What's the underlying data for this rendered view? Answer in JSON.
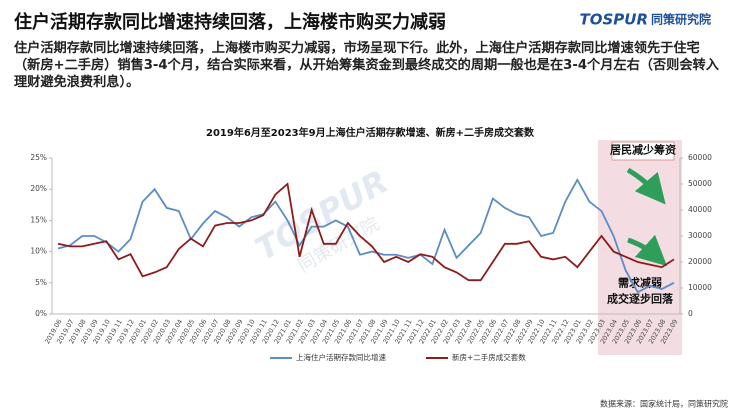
{
  "header": {
    "title": "住户活期存款同比增速持续回落，上海楼市购买力减弱"
  },
  "logo": {
    "brand": "TOSPUR",
    "name": "同策研究院"
  },
  "description": "住户活期存款同比增速持续回落，上海楼市购买力减弱，市场呈现下行。此外，上海住户活期存款同比增速领先于住宅（新房+二手房）销售3-4个月，结合实际来看，从开始筹集资金到最终成交的周期一般也是在3-4个月左右（否则会转入理财避免浪费利息）。",
  "chart_data": {
    "type": "line",
    "title": "2019年6月至2023年9月上海住户活期存款增速、新房+二手房成交套数",
    "categories": [
      "2019.06",
      "2019.07",
      "2019.08",
      "2019.09",
      "2019.10",
      "2019.11",
      "2019.12",
      "2020.01",
      "2020.02",
      "2020.03",
      "2020.04",
      "2020.05",
      "2020.06",
      "2020.07",
      "2020.08",
      "2020.09",
      "2020.10",
      "2020.11",
      "2020.12",
      "2021.01",
      "2021.02",
      "2021.03",
      "2021.04",
      "2021.05",
      "2021.06",
      "2021.07",
      "2021.08",
      "2021.09",
      "2021.10",
      "2021.11",
      "2021.12",
      "2022.01",
      "2022.02",
      "2022.03",
      "2022.04",
      "2022.05",
      "2022.06",
      "2022.07",
      "2022.08",
      "2022.09",
      "2022.10",
      "2022.11",
      "2022.12",
      "2023.01",
      "2023.02",
      "2023.03",
      "2023.04",
      "2023.05",
      "2023.06",
      "2023.07",
      "2023.08",
      "2023.09"
    ],
    "series": [
      {
        "name": "上海住户活期存款同比增速",
        "color": "#5b8cc4",
        "values": [
          10.5,
          11,
          12.5,
          12.5,
          11.5,
          10,
          12,
          18,
          20,
          17,
          16.5,
          12,
          14.5,
          16.5,
          15.5,
          14,
          15.5,
          16,
          18,
          15,
          11,
          14,
          14,
          15,
          14,
          9.5,
          10,
          9.5,
          9.5,
          9,
          9.5,
          8,
          13.5,
          9,
          11,
          13,
          18.5,
          17,
          16,
          15.5,
          12.5,
          13,
          18,
          21.5,
          18,
          16.5,
          12.5,
          7,
          3.5,
          4.5,
          4,
          5
        ]
      },
      {
        "name": "新房+二手房成交套数",
        "color": "#8e1b1b",
        "axis": "y2",
        "values": [
          27000,
          26000,
          26000,
          27000,
          28000,
          21000,
          23000,
          14500,
          16000,
          18000,
          25000,
          29000,
          26000,
          34000,
          35000,
          35000,
          36000,
          38000,
          46000,
          50000,
          22000,
          40000,
          27000,
          27000,
          35000,
          30000,
          26000,
          20000,
          22000,
          20000,
          23000,
          22000,
          18000,
          16000,
          13000,
          13000,
          20000,
          27000,
          27000,
          28000,
          22000,
          21000,
          22000,
          18000,
          24000,
          30000,
          24000,
          22000,
          20000,
          19000,
          18000,
          21000
        ]
      }
    ],
    "ylim": [
      0,
      25
    ],
    "yticks": [
      {
        "value": 0,
        "label": "0%"
      },
      {
        "value": 5,
        "label": "5%"
      },
      {
        "value": 10,
        "label": "10%"
      },
      {
        "value": 15,
        "label": "15%"
      },
      {
        "value": 20,
        "label": "20%"
      },
      {
        "value": 25,
        "label": "25%"
      }
    ],
    "y2lim": [
      0,
      60000
    ],
    "y2ticks": [
      0,
      10000,
      20000,
      30000,
      40000,
      50000,
      60000
    ],
    "grid": false,
    "annotations": [
      "居民减少筹资",
      "需求减弱",
      "成交逐步回落"
    ]
  },
  "source": "数据来源：国家统计局，同策研究院"
}
